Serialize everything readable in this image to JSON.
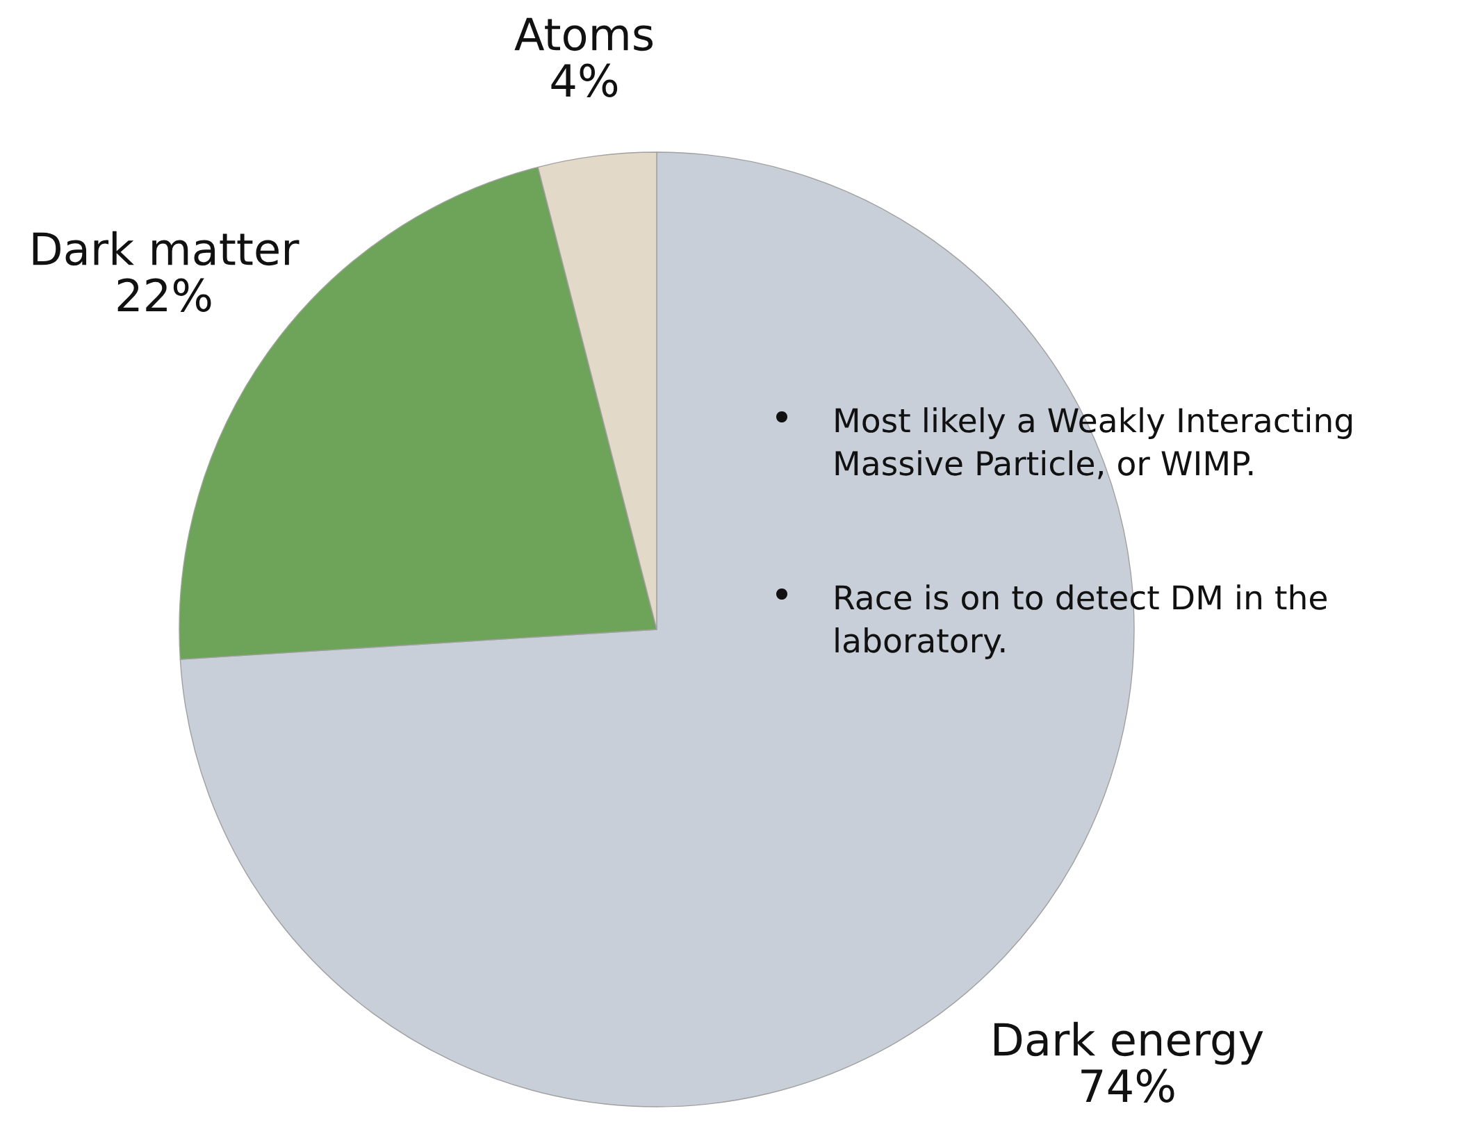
{
  "chart_data": {
    "type": "pie",
    "categories": [
      "Dark energy",
      "Dark matter",
      "Atoms"
    ],
    "values": [
      74,
      22,
      4
    ],
    "value_labels": [
      "74%",
      "22%",
      "4%"
    ],
    "colors": [
      "#c8cfd8",
      "#6ea45a",
      "#e3d9c8"
    ],
    "annotations": [
      "Most likely a Weakly Interacting\nMassive Particle, or WIMP.",
      "Race is on to detect DM in the\nlaboratory."
    ]
  }
}
